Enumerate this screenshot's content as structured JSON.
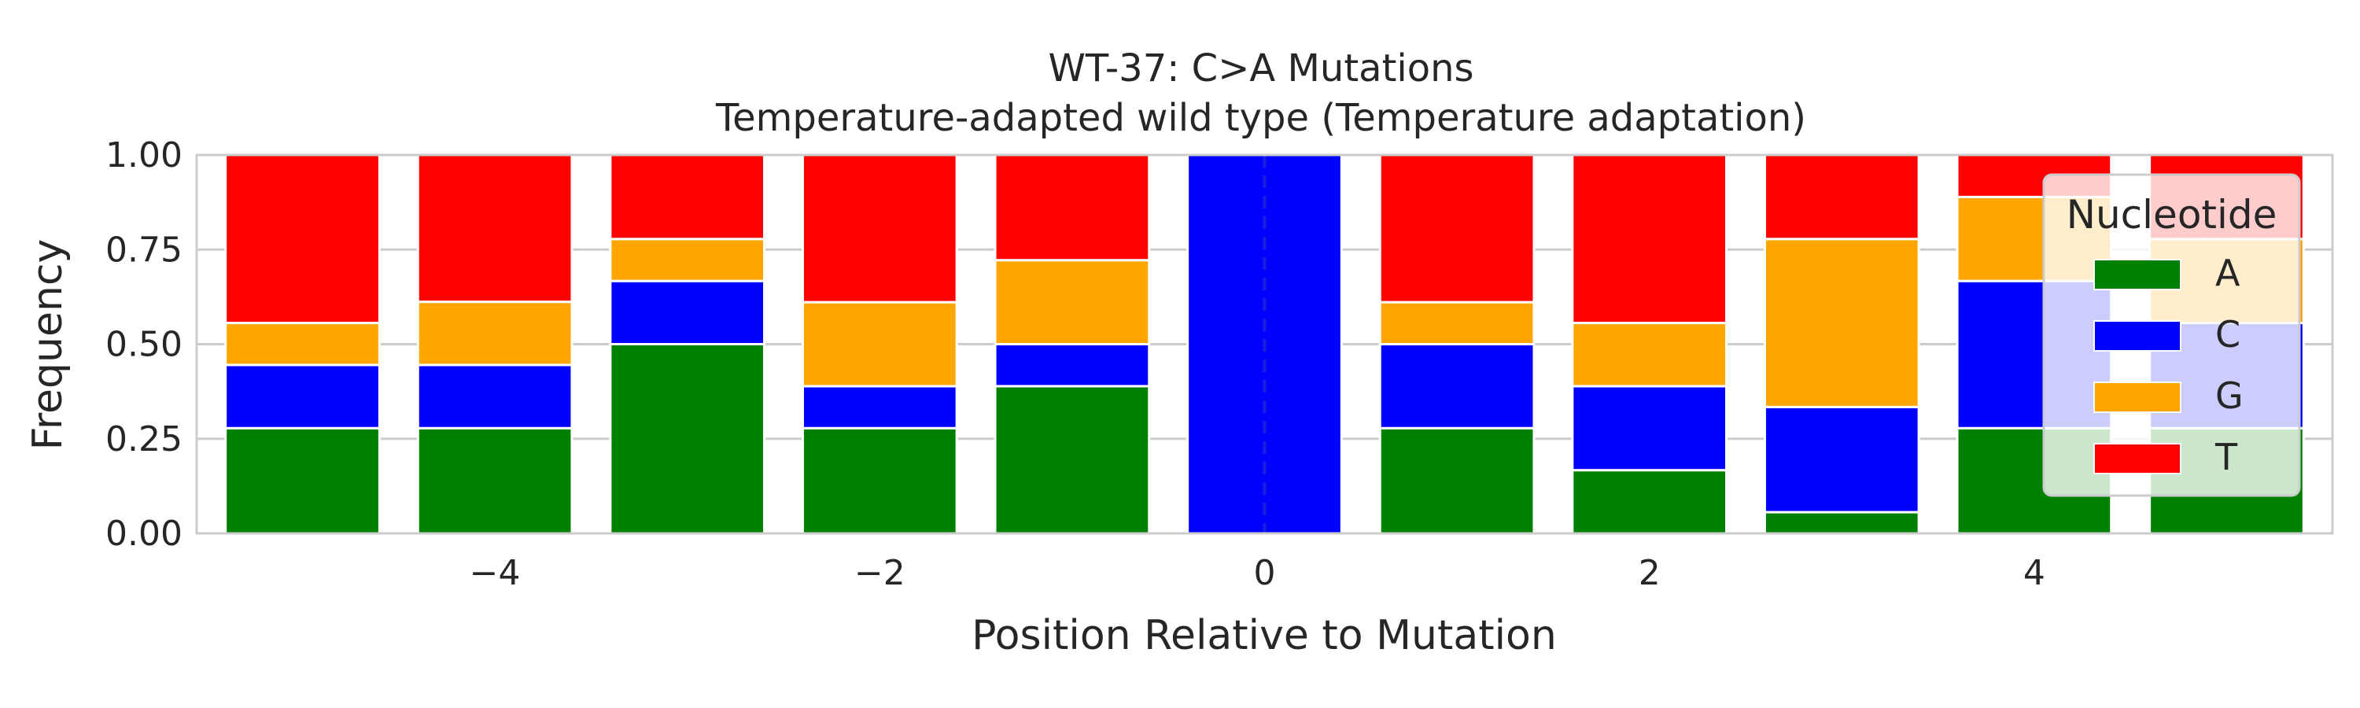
{
  "chart_data": {
    "type": "bar",
    "stacked": true,
    "title": "WT-37: C>A Mutations",
    "subtitle": "Temperature-adapted wild type (Temperature adaptation)",
    "xlabel": "Position Relative to Mutation",
    "ylabel": "Frequency",
    "x": [
      -5,
      -4,
      -3,
      -2,
      -1,
      0,
      1,
      2,
      3,
      4,
      5
    ],
    "xlim": [
      -5.55,
      5.55
    ],
    "ylim": [
      0,
      1
    ],
    "xticks": [
      -4,
      -2,
      0,
      2,
      4
    ],
    "xtick_labels": [
      "−4",
      "−2",
      "0",
      "2",
      "4"
    ],
    "yticks": [
      0,
      0.25,
      0.5,
      0.75,
      1.0
    ],
    "ytick_labels": [
      "0.00",
      "0.25",
      "0.50",
      "0.75",
      "1.00"
    ],
    "grid": true,
    "reference_line": {
      "x": 0,
      "style": "dashed",
      "color": "#3333cc"
    },
    "series": [
      {
        "name": "A",
        "color": "#008000",
        "values": [
          0.278,
          0.278,
          0.5,
          0.278,
          0.389,
          0.0,
          0.278,
          0.167,
          0.056,
          0.278,
          0.278
        ]
      },
      {
        "name": "C",
        "color": "#0000ff",
        "values": [
          0.167,
          0.167,
          0.167,
          0.111,
          0.111,
          1.0,
          0.222,
          0.222,
          0.278,
          0.389,
          0.278
        ]
      },
      {
        "name": "G",
        "color": "#ffa500",
        "values": [
          0.111,
          0.167,
          0.111,
          0.222,
          0.222,
          0.0,
          0.111,
          0.167,
          0.444,
          0.222,
          0.222
        ]
      },
      {
        "name": "T",
        "color": "#ff0000",
        "values": [
          0.444,
          0.389,
          0.222,
          0.389,
          0.278,
          0.0,
          0.389,
          0.444,
          0.222,
          0.111,
          0.222
        ]
      }
    ],
    "legend": {
      "title": "Nucleotide",
      "placement": "right"
    }
  }
}
